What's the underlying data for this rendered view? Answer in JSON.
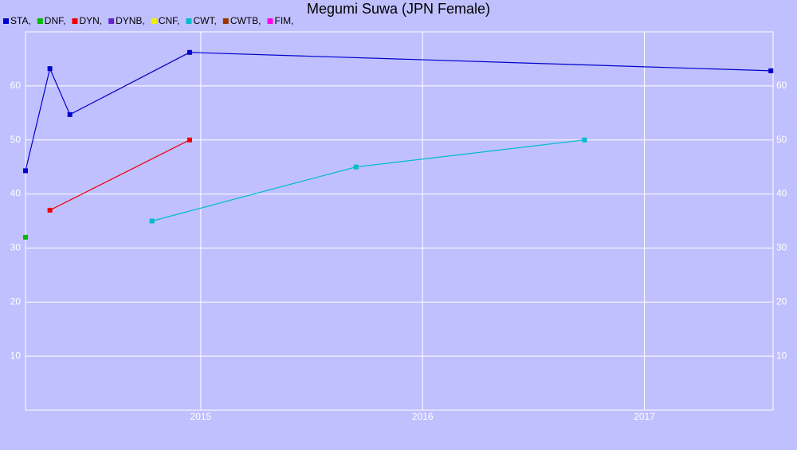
{
  "chart_data": {
    "type": "line",
    "title": "Megumi Suwa (JPN Female)",
    "xlim": [
      2014.21,
      2017.58
    ],
    "xticks": [
      2015,
      2016,
      2017
    ],
    "ylim": [
      0,
      70
    ],
    "yticks": [
      10,
      20,
      30,
      40,
      50,
      60
    ],
    "grid": true,
    "series": [
      {
        "name": "STA,",
        "color": "#0000cc",
        "x": [
          2014.21,
          2014.32,
          2014.41,
          2014.95,
          2017.57
        ],
        "values": [
          44.3,
          63.2,
          54.7,
          66.2,
          62.8
        ]
      },
      {
        "name": "DNF,",
        "color": "#00bb00",
        "x": [
          2014.21
        ],
        "values": [
          32
        ]
      },
      {
        "name": "DYN,",
        "color": "#ee0000",
        "x": [
          2014.32,
          2014.95
        ],
        "values": [
          37,
          50
        ]
      },
      {
        "name": "DYNB,",
        "color": "#6622cc",
        "x": [],
        "values": []
      },
      {
        "name": "CNF,",
        "color": "#eeee00",
        "x": [],
        "values": []
      },
      {
        "name": "CWT,",
        "color": "#00bbcc",
        "x": [
          2014.78,
          2015.7,
          2016.73
        ],
        "values": [
          35,
          45,
          50
        ]
      },
      {
        "name": "CWTB,",
        "color": "#993300",
        "x": [],
        "values": []
      },
      {
        "name": "FIM,",
        "color": "#ff00ee",
        "x": [],
        "values": []
      }
    ]
  }
}
